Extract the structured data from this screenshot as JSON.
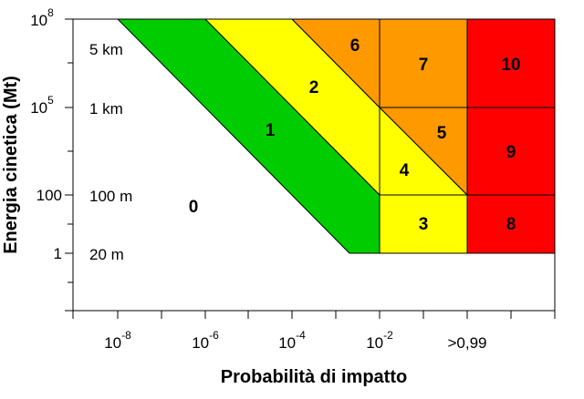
{
  "chart_data": {
    "type": "zone-diagram",
    "xlabel": "Probabilità di impatto",
    "ylabel": "Energia cinetica (Mt)",
    "x_ticks": [
      {
        "base": "10",
        "exp": "-8"
      },
      {
        "base": "10",
        "exp": "-6"
      },
      {
        "base": "10",
        "exp": "-4"
      },
      {
        "base": "10",
        "exp": "-2"
      },
      {
        "base": ">0,99",
        "exp": ""
      }
    ],
    "y_ticks": [
      {
        "base": "10",
        "exp": "8"
      },
      {
        "base": "10",
        "exp": "5"
      },
      {
        "base": "100",
        "exp": ""
      },
      {
        "base": "1",
        "exp": ""
      }
    ],
    "size_labels": [
      "5 km",
      "1 km",
      "100 m",
      "20 m"
    ],
    "zones": [
      {
        "label": "0",
        "color": "#ffffff"
      },
      {
        "label": "1",
        "color": "#00cc00"
      },
      {
        "label": "2",
        "color": "#ffff00"
      },
      {
        "label": "3",
        "color": "#ffff00"
      },
      {
        "label": "4",
        "color": "#ffff00"
      },
      {
        "label": "5",
        "color": "#ff9900"
      },
      {
        "label": "6",
        "color": "#ff9900"
      },
      {
        "label": "7",
        "color": "#ff9900"
      },
      {
        "label": "8",
        "color": "#ff0000"
      },
      {
        "label": "9",
        "color": "#ff0000"
      },
      {
        "label": "10",
        "color": "#ff0000"
      }
    ]
  }
}
